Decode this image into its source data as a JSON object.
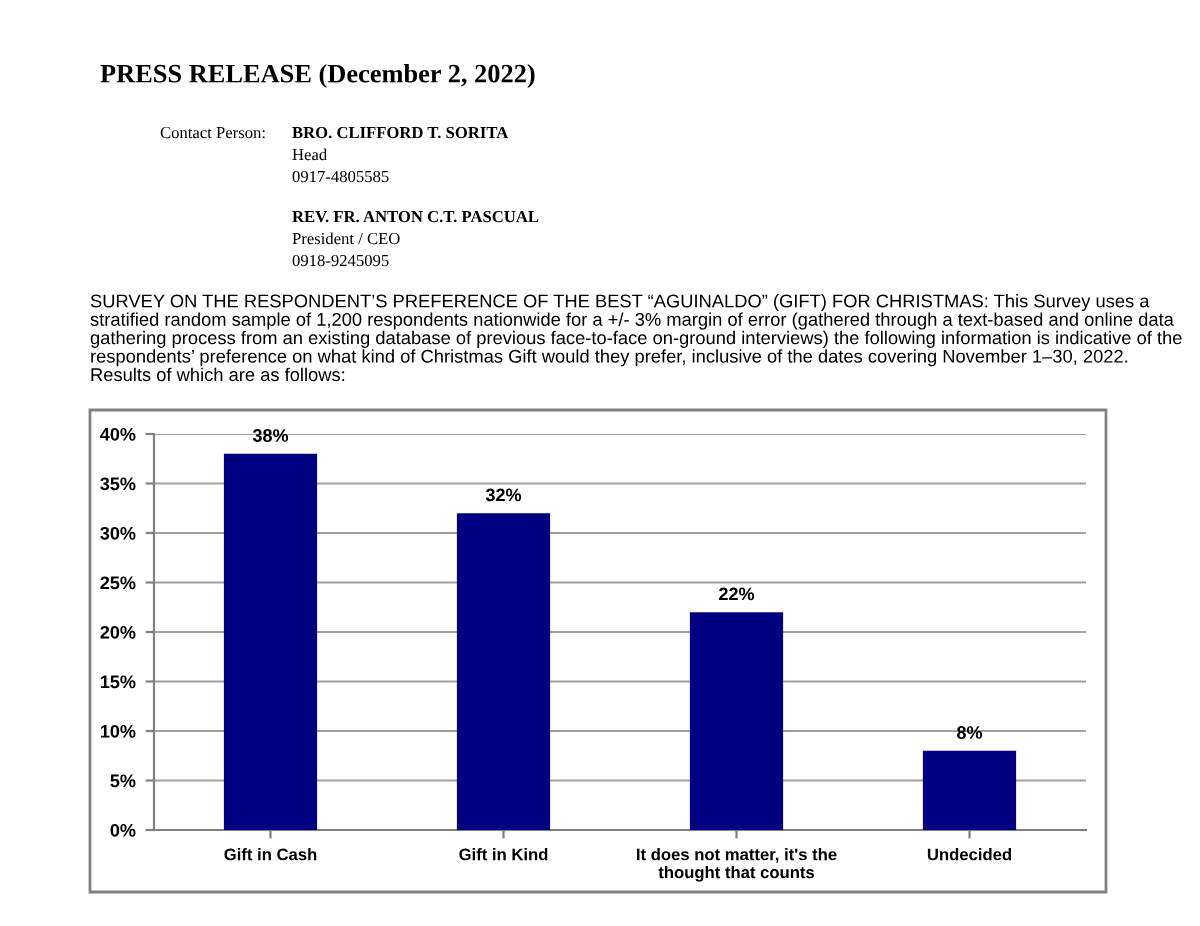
{
  "chart_data": {
    "type": "bar",
    "title": "PRESS RELEASE (December 2, 2022)",
    "subtitle": "SURVEY ON THE RESPONDENT’S PREFERENCE OF THE BEST “AGUINALDO” (GIFT) FOR CHRISTMAS: This Survey uses a stratified random sample of 1,200 respondents nationwide for a +/- 3% margin of error (gathered through a text-based and online data gathering process from an existing database of previous face-to-face on-ground interviews) the following information is indicative of the respondents’ preference on what kind of Christmas Gift would they prefer, inclusive of the dates covering November 1–30, 2022.  Results of which are as follows:",
    "annotations": [
      "Contact Person:",
      "BRO. CLIFFORD T. SORITA",
      "Head",
      "0917-4805585",
      "REV. FR. ANTON C.T. PASCUAL",
      "President / CEO",
      "0918-9245095"
    ],
    "categories": [
      "Gift in Cash",
      "Gift in Kind",
      "It does not matter, it's the\nthought that counts",
      "Undecided"
    ],
    "values": [
      38,
      32,
      22,
      8
    ],
    "color": "#000080",
    "ylim": [
      0,
      40
    ],
    "yticks": [
      {
        "value": 0,
        "label": "0%"
      },
      {
        "value": 5,
        "label": "5%"
      },
      {
        "value": 10,
        "label": "10%"
      },
      {
        "value": 15,
        "label": "15%"
      },
      {
        "value": 20,
        "label": "20%"
      },
      {
        "value": 25,
        "label": "25%"
      },
      {
        "value": 30,
        "label": "30%"
      },
      {
        "value": 35,
        "label": "35%"
      },
      {
        "value": 40,
        "label": "40%"
      }
    ],
    "value_labels": [
      "38%",
      "32%",
      "22%",
      "8%"
    ],
    "grid": "y"
  }
}
